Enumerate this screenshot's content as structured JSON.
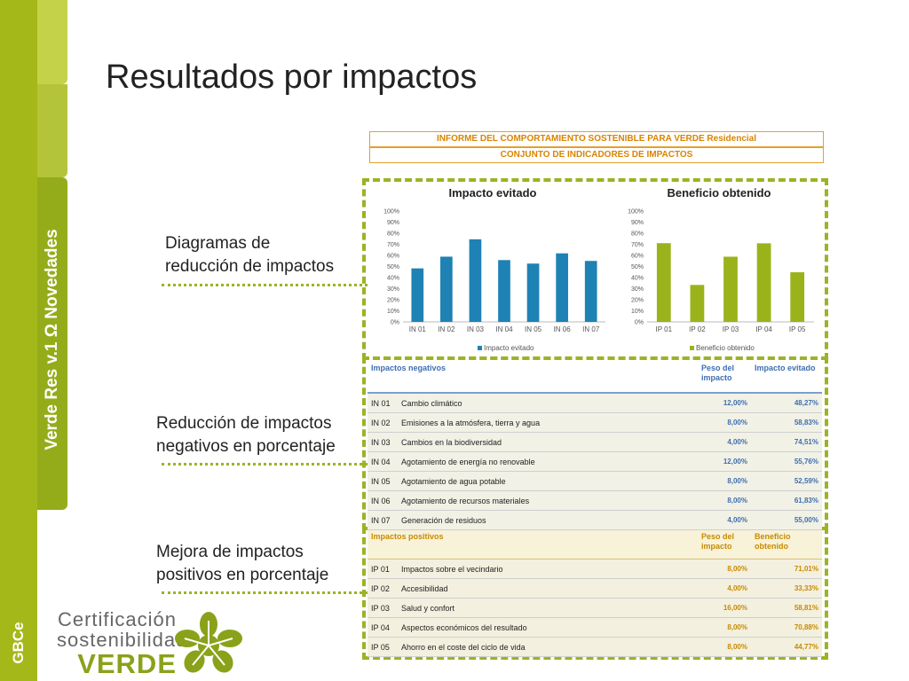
{
  "sidebar": {
    "title": "Verde Res v.1 Ω Novedades",
    "org_logo": "GBCe"
  },
  "page": {
    "title": "Resultados por impactos"
  },
  "callouts": {
    "diagrams": [
      "Diagramas de",
      "reducción de impactos"
    ],
    "negative": [
      "Reducción de impactos",
      "negativos en porcentaje"
    ],
    "positive": [
      "Mejora de impactos",
      "positivos en porcentaje"
    ]
  },
  "report": {
    "title": "INFORME DEL COMPORTAMIENTO SOSTENIBLE PARA VERDE Residencial",
    "subtitle": "CONJUNTO DE INDICADORES DE IMPACTOS"
  },
  "chart_data": [
    {
      "type": "bar",
      "title": "Impacto evitado",
      "categories": [
        "IN 01",
        "IN 02",
        "IN 03",
        "IN 04",
        "IN 05",
        "IN 06",
        "IN 07"
      ],
      "series": [
        {
          "name": "Impacto evitado",
          "values": [
            48.27,
            58.83,
            74.51,
            55.76,
            52.59,
            61.83,
            55.0
          ]
        }
      ],
      "yticks": [
        "0%",
        "10%",
        "20%",
        "30%",
        "40%",
        "50%",
        "60%",
        "70%",
        "80%",
        "90%",
        "100%"
      ],
      "ylim": [
        0,
        100
      ],
      "color": "#1e82b4",
      "legend": "bottom"
    },
    {
      "type": "bar",
      "title": "Beneficio obtenido",
      "categories": [
        "IP 01",
        "IP 02",
        "IP 03",
        "IP 04",
        "IP 05"
      ],
      "series": [
        {
          "name": "Beneficio obtenido",
          "values": [
            71.01,
            33.33,
            58.81,
            70.88,
            44.77
          ]
        }
      ],
      "yticks": [
        "0%",
        "10%",
        "20%",
        "30%",
        "40%",
        "50%",
        "60%",
        "70%",
        "80%",
        "90%",
        "100%"
      ],
      "ylim": [
        0,
        100
      ],
      "color": "#9bb31a",
      "legend": "bottom"
    }
  ],
  "negative_table": {
    "headers": [
      "Impactos negativos",
      "Peso del impacto",
      "Impacto evitado"
    ],
    "rows": [
      {
        "code": "IN 01",
        "name": "Cambio climático",
        "weight": "12,00%",
        "value": "48,27%"
      },
      {
        "code": "IN 02",
        "name": "Emisiones a la atmósfera, tierra y agua",
        "weight": "8,00%",
        "value": "58,83%"
      },
      {
        "code": "IN 03",
        "name": "Cambios en la biodiversidad",
        "weight": "4,00%",
        "value": "74,51%"
      },
      {
        "code": "IN 04",
        "name": "Agotamiento de energía no renovable",
        "weight": "12,00%",
        "value": "55,76%"
      },
      {
        "code": "IN 05",
        "name": "Agotamiento de agua potable",
        "weight": "8,00%",
        "value": "52,59%"
      },
      {
        "code": "IN 06",
        "name": "Agotamiento de recursos materiales",
        "weight": "8,00%",
        "value": "61,83%"
      },
      {
        "code": "IN 07",
        "name": "Generación de residuos",
        "weight": "4,00%",
        "value": "55,00%"
      }
    ]
  },
  "positive_table": {
    "headers": [
      "Impactos positivos",
      "Peso del impacto",
      "Beneficio obtenido"
    ],
    "rows": [
      {
        "code": "IP 01",
        "name": "Impactos sobre el vecindario",
        "weight": "8,00%",
        "value": "71,01%"
      },
      {
        "code": "IP 02",
        "name": "Accesibilidad",
        "weight": "4,00%",
        "value": "33,33%"
      },
      {
        "code": "IP 03",
        "name": "Salud y confort",
        "weight": "16,00%",
        "value": "58,81%"
      },
      {
        "code": "IP 04",
        "name": "Aspectos económicos del resultado",
        "weight": "8,00%",
        "value": "70,88%"
      },
      {
        "code": "IP 05",
        "name": "Ahorro en el coste del ciclo de vida",
        "weight": "8,00%",
        "value": "44,77%"
      }
    ]
  },
  "footer_logo": {
    "line1": "Certificación",
    "line2": "sostenibilidad",
    "line3": "VERDE"
  }
}
